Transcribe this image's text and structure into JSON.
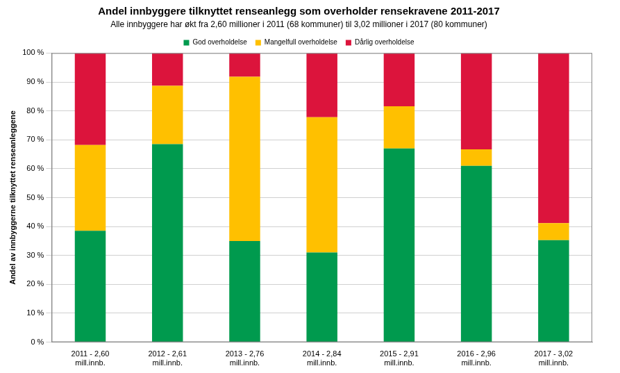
{
  "chart_data": {
    "type": "bar",
    "title": "Andel innbyggere tilknyttet renseanlegg som overholder rensekravene 2011-2017",
    "subtitle": "Alle innbyggere har økt fra 2,60 millioner i 2011 (68 kommuner) til 3,02 millioner i 2017 (80 kommuner)",
    "y_label": "Andel av innbyggerne tilknyttet renseanleggene",
    "categories": [
      "2011 - 2,60\nmill.innb.",
      "2012 - 2,61\nmill.innb.",
      "2013 - 2,76\nmill.innb.",
      "2014 - 2,84\nmill.innb.",
      "2015 - 2,91\nmill.innb.",
      "2016 - 2,96\nmill.innb.",
      "2017 - 3,02\nmill.innb."
    ],
    "series": [
      {
        "name": "God overholdelse",
        "color": "#009a4e",
        "values": [
          38.5,
          68.5,
          35,
          31,
          67,
          61,
          35.3
        ]
      },
      {
        "name": "Mangelfull overholdelse",
        "color": "#ffc000",
        "values": [
          29.7,
          20.2,
          56.8,
          46.8,
          14.6,
          5.7,
          5.9
        ]
      },
      {
        "name": "Dårlig overholdelse",
        "color": "#dc143c",
        "values": [
          31.8,
          11.3,
          8.2,
          22.2,
          18.4,
          33.3,
          58.8
        ]
      }
    ],
    "stacked": true,
    "ylim": [
      0,
      100
    ],
    "yticks": [
      {
        "value": 0,
        "label": "0 %"
      },
      {
        "value": 10,
        "label": "10 %"
      },
      {
        "value": 20,
        "label": "20 %"
      },
      {
        "value": 30,
        "label": "30 %"
      },
      {
        "value": 40,
        "label": "40 %"
      },
      {
        "value": 50,
        "label": "50 %"
      },
      {
        "value": 60,
        "label": "60 %"
      },
      {
        "value": 70,
        "label": "70 %"
      },
      {
        "value": 80,
        "label": "80 %"
      },
      {
        "value": 90,
        "label": "90 %"
      },
      {
        "value": 100,
        "label": "100 %"
      }
    ],
    "grid": true,
    "legend": "top"
  }
}
